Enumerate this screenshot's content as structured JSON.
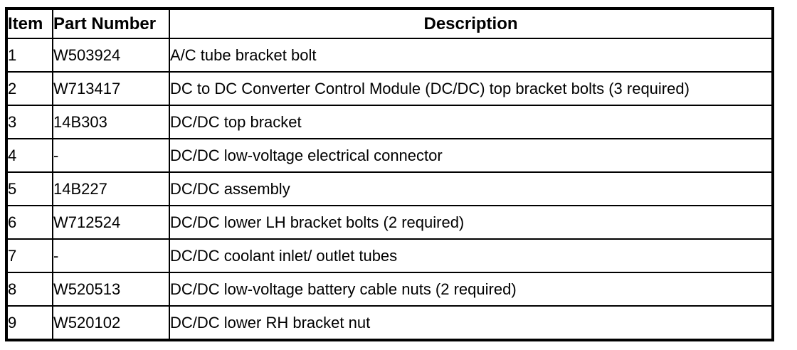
{
  "colors": {
    "border": "#000000",
    "background": "#ffffff",
    "text": "#000000"
  },
  "table": {
    "columns": [
      {
        "key": "item",
        "label": "Item"
      },
      {
        "key": "part_number",
        "label": "Part Number"
      },
      {
        "key": "description",
        "label": "Description"
      }
    ],
    "rows": [
      {
        "item": "1",
        "part_number": "W503924",
        "description": "A/C tube bracket bolt"
      },
      {
        "item": "2",
        "part_number": "W713417",
        "description": "DC to DC Converter Control Module (DC/DC) top bracket bolts (3 required)"
      },
      {
        "item": "3",
        "part_number": "14B303",
        "description": "DC/DC top bracket"
      },
      {
        "item": "4",
        "part_number": "-",
        "description": "DC/DC low-voltage electrical connector"
      },
      {
        "item": "5",
        "part_number": "14B227",
        "description": "DC/DC assembly"
      },
      {
        "item": "6",
        "part_number": "W712524",
        "description": "DC/DC lower LH bracket bolts (2 required)"
      },
      {
        "item": "7",
        "part_number": "-",
        "description": "DC/DC coolant inlet/ outlet tubes"
      },
      {
        "item": "8",
        "part_number": "W520513",
        "description": "DC/DC low-voltage battery cable nuts (2 required)"
      },
      {
        "item": "9",
        "part_number": "W520102",
        "description": "DC/DC lower RH bracket nut"
      }
    ]
  }
}
